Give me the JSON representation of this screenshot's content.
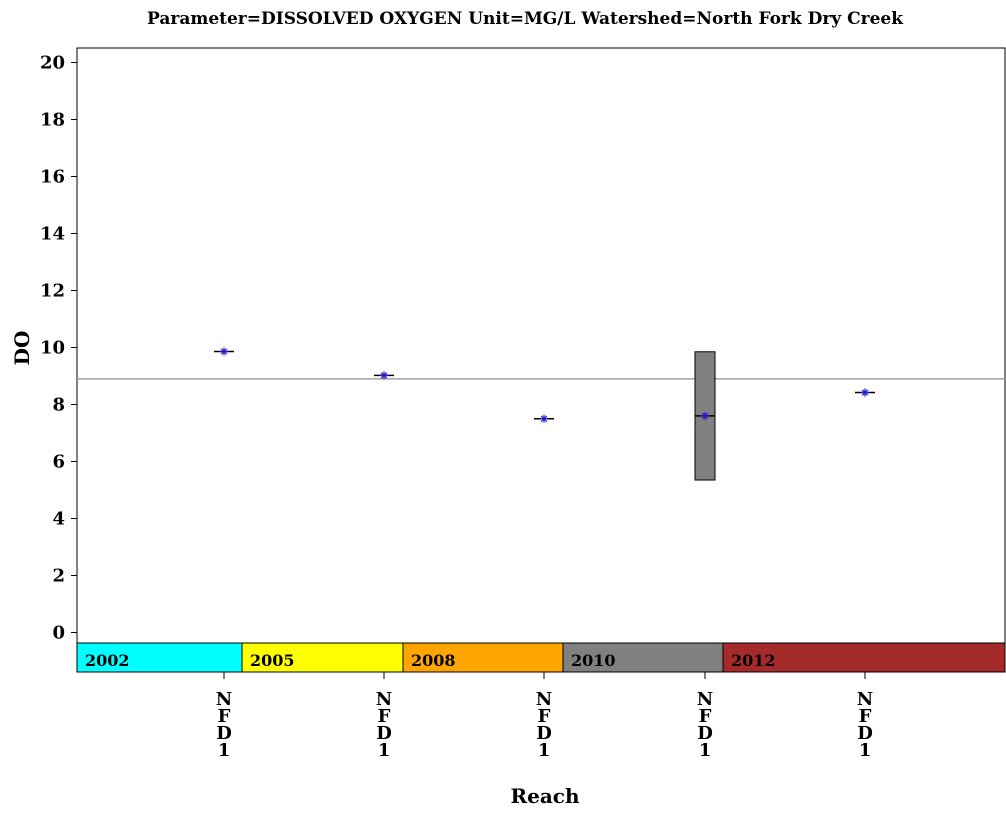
{
  "title": "Parameter=DISSOLVED OXYGEN Unit=MG/L Watershed=North Fork Dry Creek",
  "chart_data": {
    "type": "box",
    "title": "Parameter=DISSOLVED OXYGEN Unit=MG/L Watershed=North Fork Dry Creek",
    "xlabel": "Reach",
    "ylabel": "DO",
    "ylim": [
      -1.5,
      20.4
    ],
    "yticks": [
      0,
      2,
      4,
      6,
      8,
      10,
      12,
      14,
      16,
      18,
      20
    ],
    "reference_line": 8.9,
    "categories": [
      "NFD1",
      "NFD1",
      "NFD1",
      "NFD1",
      "NFD1"
    ],
    "category_letters": [
      "N",
      "F",
      "D",
      "1"
    ],
    "boxes": [
      {
        "year": "2002",
        "q1": 9.86,
        "median": 9.86,
        "q3": 9.86,
        "mean": 9.86
      },
      {
        "year": "2005",
        "q1": 9.02,
        "median": 9.02,
        "q3": 9.02,
        "mean": 9.02
      },
      {
        "year": "2008",
        "q1": 7.5,
        "median": 7.5,
        "q3": 7.5,
        "mean": 7.5
      },
      {
        "year": "2010",
        "q1": 5.35,
        "median": 7.6,
        "q3": 9.85,
        "mean": 7.6
      },
      {
        "year": "2012",
        "q1": 8.42,
        "median": 8.42,
        "q3": 8.42,
        "mean": 8.42
      }
    ],
    "bands": [
      {
        "label": "2002",
        "color": "#00ffff"
      },
      {
        "label": "2005",
        "color": "#ffff00"
      },
      {
        "label": "2008",
        "color": "#ffa500"
      },
      {
        "label": "2010",
        "color": "#808080"
      },
      {
        "label": "2012",
        "color": "#a52a2a"
      }
    ],
    "box_fill": "#808080",
    "mean_marker_color": "#1f1fd0",
    "reference_color": "#a0a0a0"
  }
}
